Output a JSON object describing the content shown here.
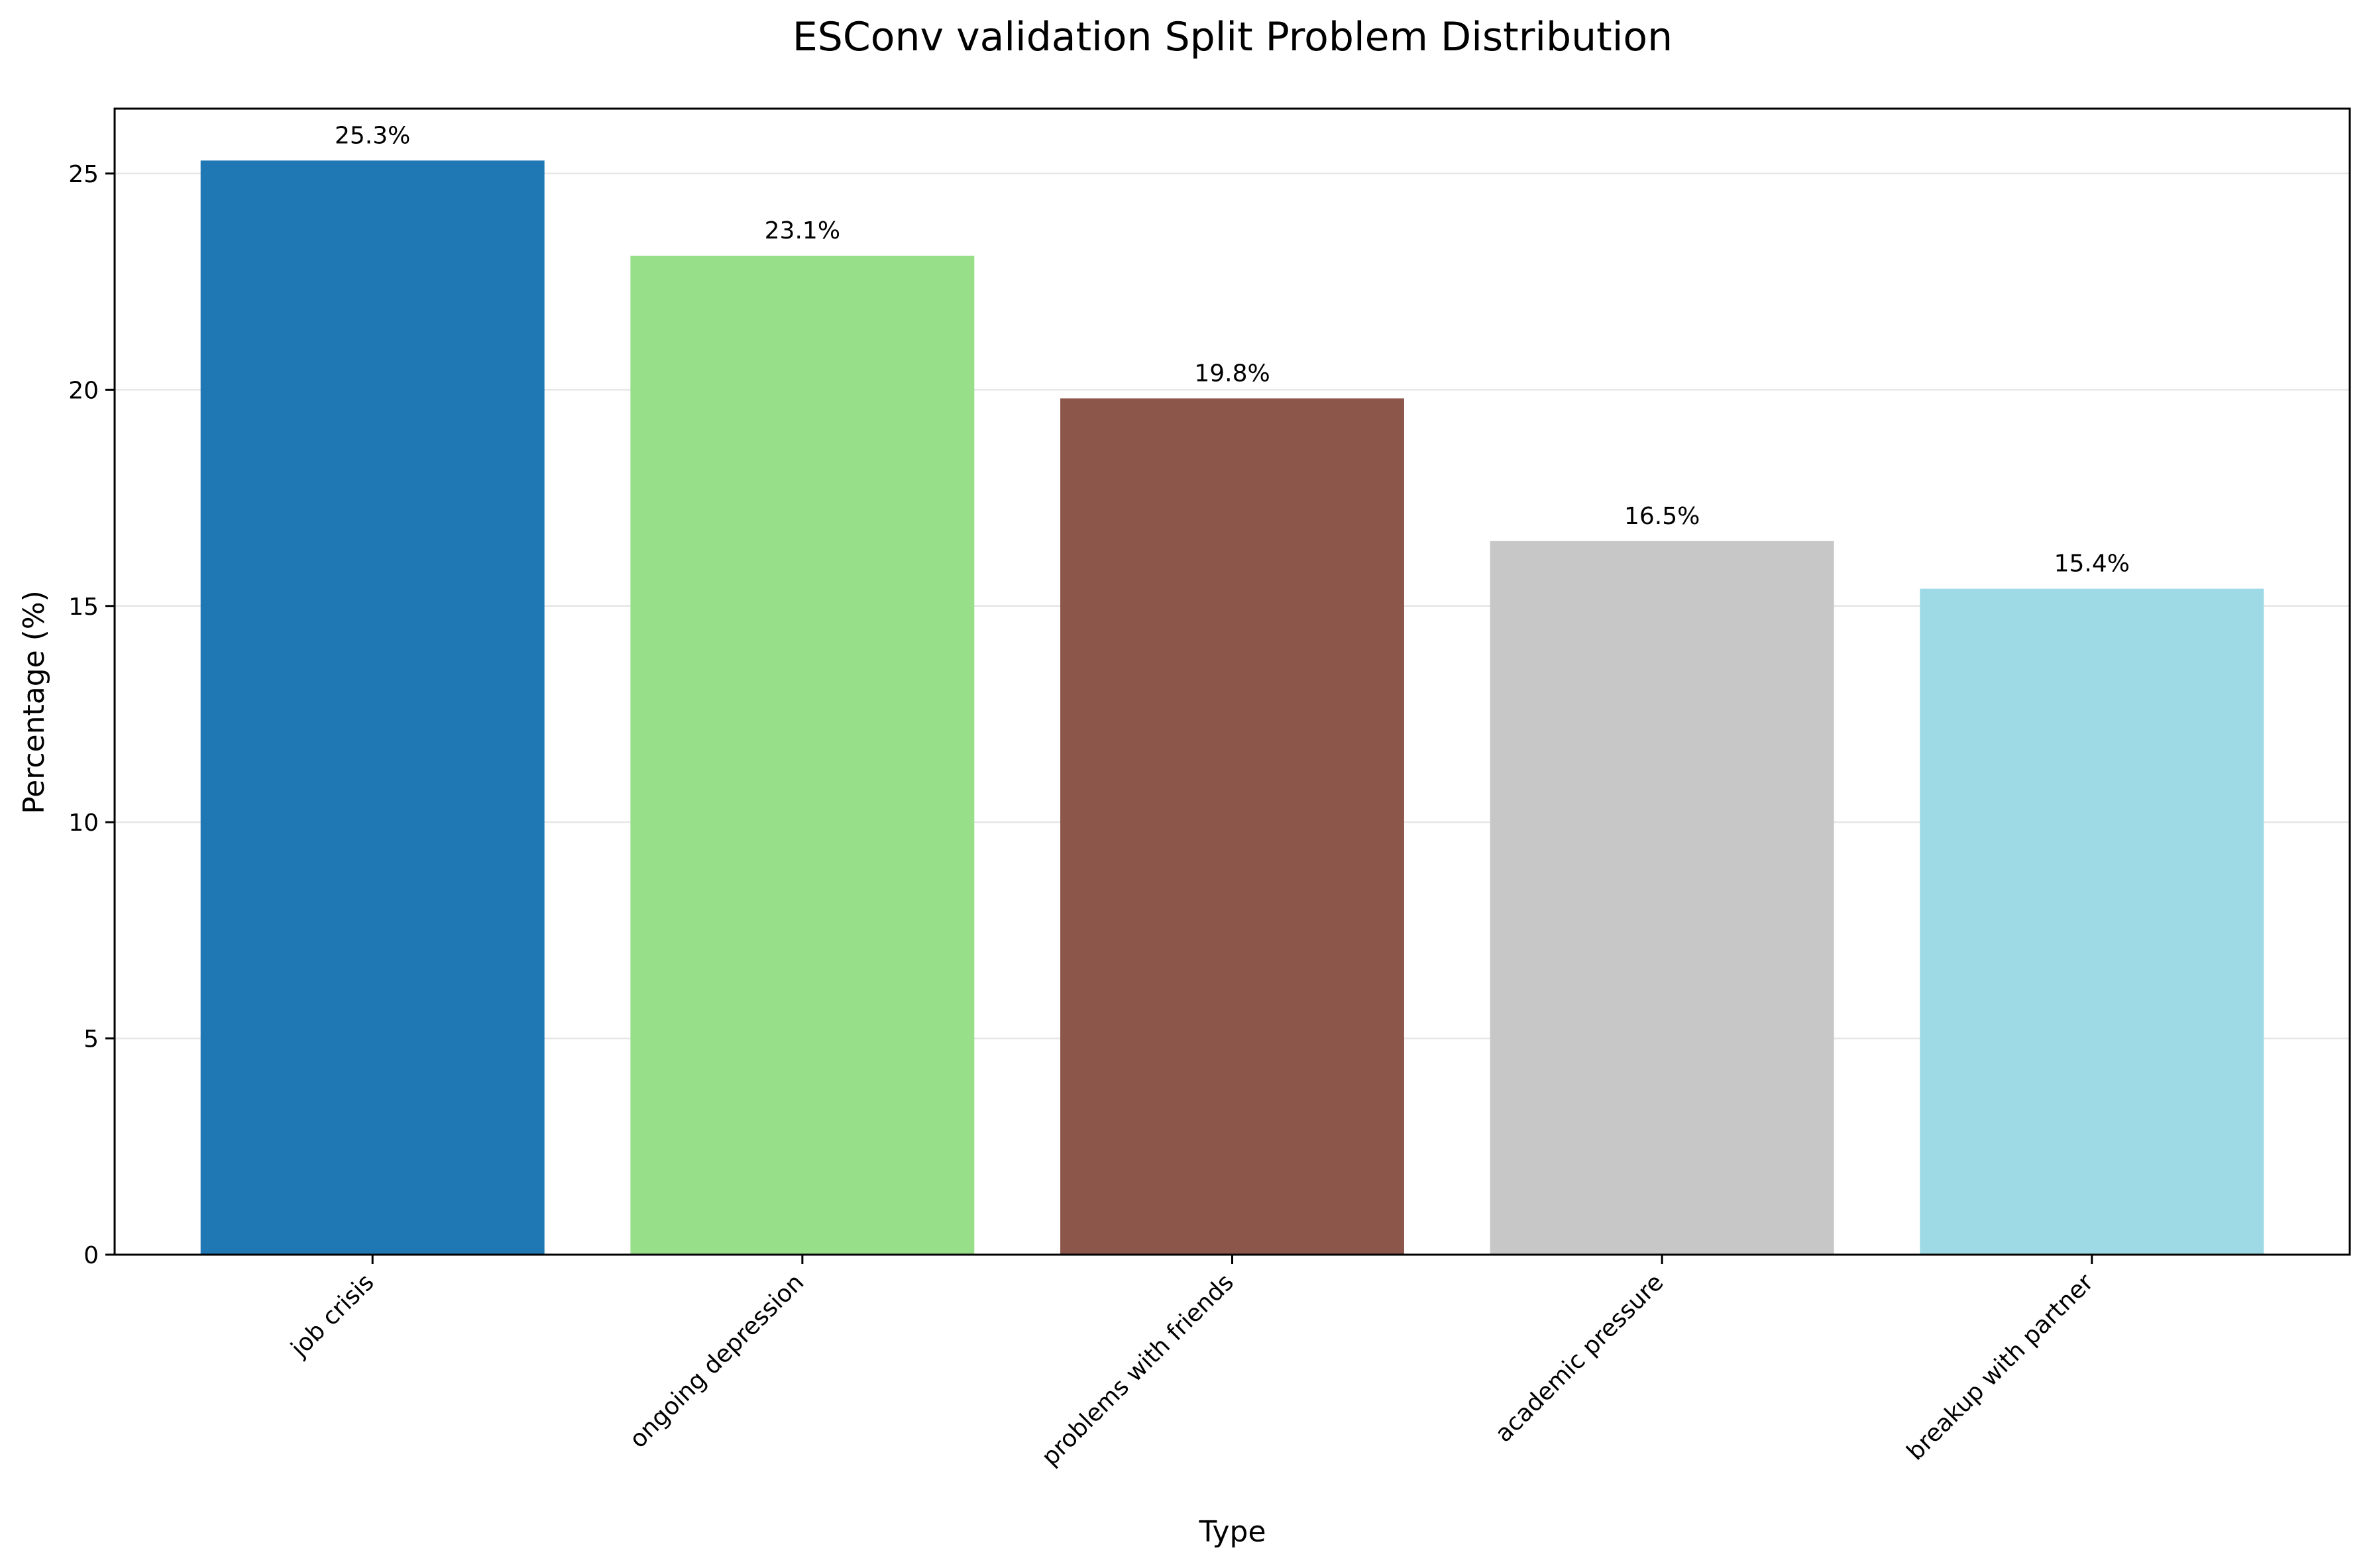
{
  "chart_data": {
    "type": "bar",
    "title": "ESConv validation Split Problem Distribution",
    "xlabel": "Type",
    "ylabel": "Percentage (%)",
    "categories": [
      "job crisis",
      "ongoing depression",
      "problems with friends",
      "academic pressure",
      "breakup with partner"
    ],
    "values": [
      25.3,
      23.1,
      19.8,
      16.5,
      15.4
    ],
    "value_labels": [
      "25.3%",
      "23.1%",
      "19.8%",
      "16.5%",
      "15.4%"
    ],
    "colors": [
      "#1f77b4",
      "#98df8a",
      "#8c564b",
      "#c7c7c7",
      "#9edae5"
    ],
    "ylim": [
      0,
      26.5
    ],
    "yticks": [
      0,
      5,
      10,
      15,
      20,
      25
    ],
    "ytick_labels": [
      "0",
      "5",
      "10",
      "15",
      "20",
      "25"
    ],
    "grid": "y"
  }
}
